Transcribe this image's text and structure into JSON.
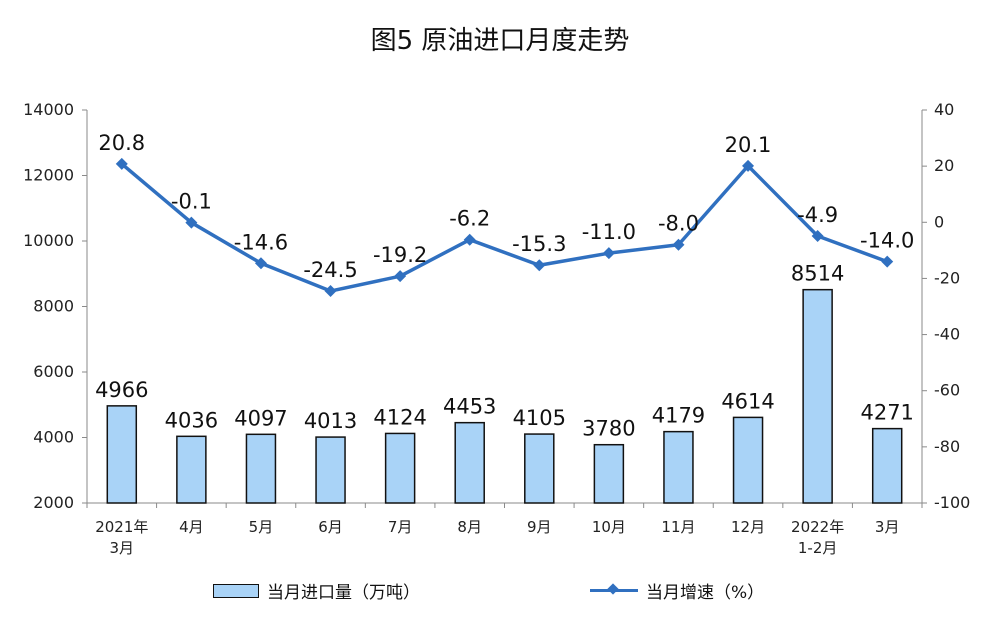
{
  "chart_data": {
    "type": "bar+line",
    "title": "图5  原油进口月度走势",
    "categories": [
      [
        "2021年",
        "3月"
      ],
      [
        "4月"
      ],
      [
        "5月"
      ],
      [
        "6月"
      ],
      [
        "7月"
      ],
      [
        "8月"
      ],
      [
        "9月"
      ],
      [
        "10月"
      ],
      [
        "11月"
      ],
      [
        "12月"
      ],
      [
        "2022年",
        "1-2月"
      ],
      [
        "3月"
      ]
    ],
    "series": [
      {
        "name": "当月进口量（万吨）",
        "type": "bar",
        "axis": "left",
        "color": "#a9d3f7",
        "values": [
          4966,
          4036,
          4097,
          4013,
          4124,
          4453,
          4105,
          3780,
          4179,
          4614,
          8514,
          4271
        ],
        "labels": [
          "4966",
          "4036",
          "4097",
          "4013",
          "4124",
          "4453",
          "4105",
          "3780",
          "4179",
          "4614",
          "8514",
          "4271"
        ]
      },
      {
        "name": "当月增速（%）",
        "type": "line",
        "axis": "right",
        "color": "#3070c0",
        "marker": "diamond",
        "values": [
          20.8,
          -0.1,
          -14.6,
          -24.5,
          -19.2,
          -6.2,
          -15.3,
          -11.0,
          -8.0,
          20.1,
          -4.9,
          -14.0
        ],
        "labels": [
          "20.8",
          "-0.1",
          "-14.6",
          "-24.5",
          "-19.2",
          "-6.2",
          "-15.3",
          "-11.0",
          "-8.0",
          "20.1",
          "-4.9",
          "-14.0"
        ]
      }
    ],
    "y_left": {
      "min": 2000,
      "max": 14000,
      "ticks": [
        "14000",
        "12000",
        "10000",
        "8000",
        "6000",
        "4000",
        "2000"
      ]
    },
    "y_right": {
      "min": -100,
      "max": 40,
      "ticks": [
        "40",
        "20",
        "0",
        "-20",
        "-40",
        "-60",
        "-80",
        "-100"
      ]
    },
    "grid": false,
    "legend_position": "bottom"
  }
}
